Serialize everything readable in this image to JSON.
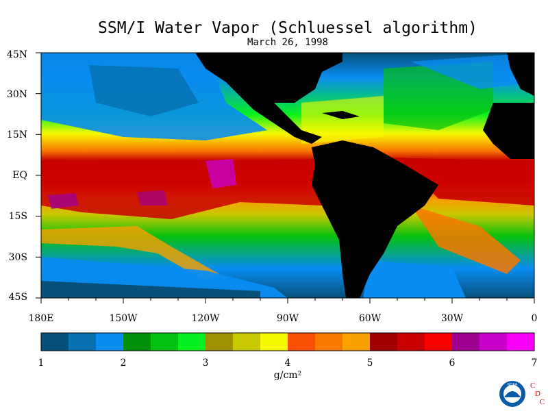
{
  "title": "SSM/I Water Vapor (Schluessel algorithm)",
  "date": "March 26, 1998",
  "lat_labels": [
    "45N",
    "30N",
    "15N",
    "EQ",
    "15S",
    "30S",
    "45S"
  ],
  "lon_labels": [
    "180E",
    "150W",
    "120W",
    "90W",
    "60W",
    "30W",
    "0"
  ],
  "colorbar": {
    "ticks": [
      "1",
      "2",
      "3",
      "4",
      "5",
      "6",
      "7"
    ],
    "units": "g/cm²",
    "colors": [
      "#06507a",
      "#0670b0",
      "#0a8cf0",
      "#00900a",
      "#04c010",
      "#06f020",
      "#a09000",
      "#c8c800",
      "#f8f800",
      "#f85000",
      "#f87800",
      "#f8a000",
      "#a00000",
      "#c80000",
      "#f80000",
      "#a00090",
      "#c800c8",
      "#f800f8"
    ]
  },
  "logo": {
    "name": "NOAA",
    "lettering": "C D C"
  },
  "colors": {
    "land": "#000000",
    "background": "#ffffff"
  }
}
